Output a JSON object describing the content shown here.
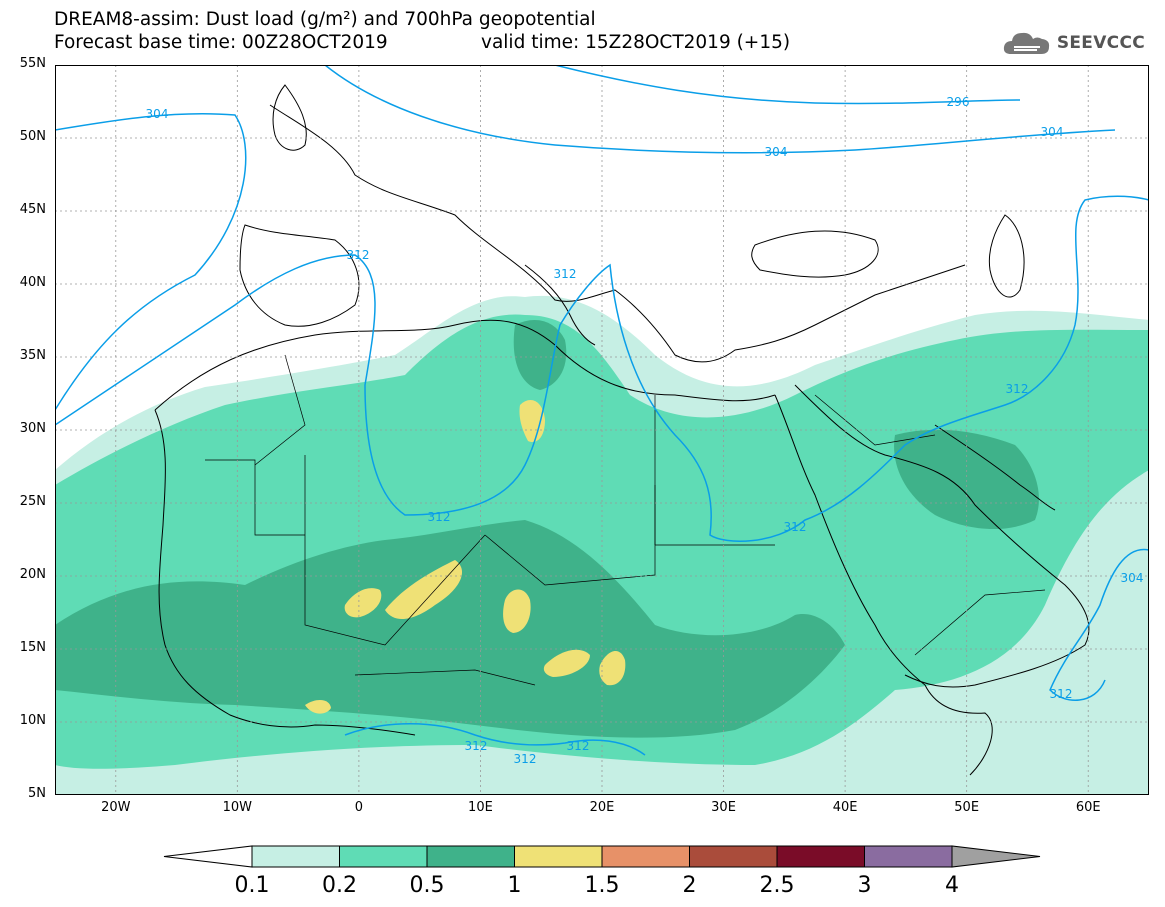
{
  "title": {
    "line1": "DREAM8-assim: Dust load (g/m²) and 700hPa geopotential",
    "line2_left": "Forecast base time: 00Z28OCT2019",
    "line2_right": "valid time: 15Z28OCT2019 (+15)"
  },
  "logo": {
    "text": "SEEVCCC",
    "icon": "cloud-icon"
  },
  "map": {
    "type": "map",
    "projection": "cylindrical (lat/lon)",
    "lon_range": [
      -25,
      65
    ],
    "lat_range": [
      5,
      55
    ],
    "lat_ticks": [
      "55N",
      "50N",
      "45N",
      "40N",
      "35N",
      "30N",
      "25N",
      "20N",
      "15N",
      "10N",
      "5N"
    ],
    "lon_ticks": [
      "20W",
      "10W",
      "0",
      "10E",
      "20E",
      "30E",
      "40E",
      "50E",
      "60E"
    ],
    "gridlines": true,
    "contour_labels": [
      "304",
      "296",
      "304",
      "304",
      "312",
      "312",
      "312",
      "312",
      "312",
      "312",
      "312",
      "312",
      "304",
      "312"
    ]
  },
  "colorbar": {
    "labels": [
      "0.1",
      "0.2",
      "0.5",
      "1",
      "1.5",
      "2",
      "2.5",
      "3",
      "4"
    ],
    "colors": [
      "#c6efe4",
      "#5fdcb5",
      "#3fb28a",
      "#efe176",
      "#e79168",
      "#aa4c3b",
      "#7a0c28",
      "#8a6ca0",
      "#a0a0a0"
    ]
  },
  "legend_colors": {
    "dust_low": "#c6efe4",
    "dust_mid": "#5fdcb5",
    "dust_high": "#3fb28a",
    "dust_peak": "#efe176",
    "contour": "#0a9ee8"
  }
}
